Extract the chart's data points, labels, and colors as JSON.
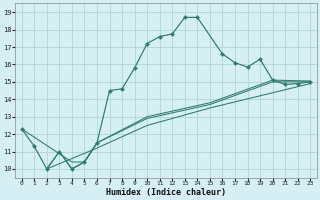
{
  "xlabel": "Humidex (Indice chaleur)",
  "background_color": "#d6eff5",
  "grid_color": "#b0d8cc",
  "line_color": "#2d7a6e",
  "xlim": [
    -0.5,
    23.5
  ],
  "ylim": [
    9.5,
    19.5
  ],
  "xticks": [
    0,
    1,
    2,
    3,
    4,
    5,
    6,
    7,
    8,
    9,
    10,
    11,
    12,
    13,
    14,
    15,
    16,
    17,
    18,
    19,
    20,
    21,
    22,
    23
  ],
  "yticks": [
    10,
    11,
    12,
    13,
    14,
    15,
    16,
    17,
    18,
    19
  ],
  "main_line": {
    "x": [
      0,
      1,
      2,
      3,
      4,
      5,
      6,
      7,
      8,
      9,
      10,
      11,
      12,
      13,
      14,
      16,
      17,
      18,
      19,
      20,
      21,
      22,
      23
    ],
    "y": [
      12.3,
      11.3,
      10.0,
      11.0,
      10.0,
      10.4,
      11.5,
      14.5,
      14.6,
      15.8,
      17.2,
      17.6,
      17.75,
      18.7,
      18.7,
      16.6,
      16.1,
      15.85,
      16.3,
      15.1,
      14.85,
      14.9,
      15.0
    ]
  },
  "straight_line1": {
    "x": [
      0,
      4,
      5,
      6,
      10,
      15,
      20,
      23
    ],
    "y": [
      12.3,
      10.4,
      10.4,
      11.5,
      13.0,
      13.8,
      15.1,
      15.05
    ]
  },
  "straight_line2": {
    "x": [
      2,
      3,
      4,
      5,
      6,
      10,
      15,
      20,
      23
    ],
    "y": [
      10.0,
      11.0,
      10.0,
      10.4,
      11.5,
      12.9,
      13.7,
      15.0,
      15.0
    ]
  },
  "straight_line3": {
    "x": [
      2,
      6,
      10,
      15,
      23
    ],
    "y": [
      10.0,
      11.2,
      12.5,
      13.5,
      14.9
    ]
  }
}
